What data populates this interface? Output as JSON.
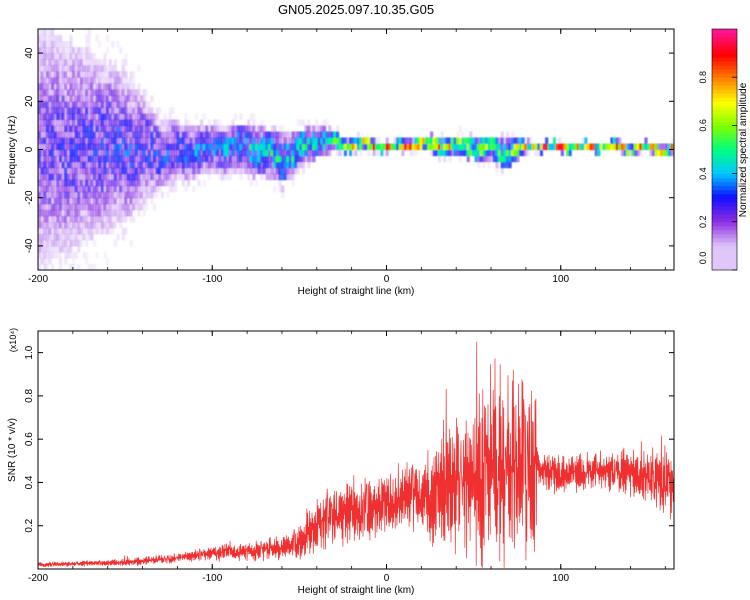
{
  "title": "GN05.2025.097.10.35.G05",
  "chart_data": [
    {
      "type": "heatmap",
      "xlabel": "Height of straight line (km)",
      "ylabel": "Frequency (Hz)",
      "xlim": [
        -200,
        165
      ],
      "ylim": [
        -50,
        50
      ],
      "x_ticks": [
        -200,
        -100,
        0,
        100
      ],
      "y_ticks": [
        -40,
        -20,
        0,
        20,
        40
      ],
      "colorbar": {
        "label": "Normalized spectral amplitude",
        "range": [
          0,
          1
        ],
        "ticks": [
          "0.0",
          "0.2",
          "0.4",
          "0.6",
          "0.8"
        ],
        "colors": [
          "#ffffff",
          "#d8b8f8",
          "#8a2be2",
          "#1010ff",
          "#00c8ff",
          "#00ff80",
          "#80ff00",
          "#ffff00",
          "#ff8000",
          "#ff0000",
          "#ff1493"
        ]
      },
      "ridge": [
        {
          "x": -200,
          "center": 0,
          "spread": 50,
          "amp": 0.25
        },
        {
          "x": -150,
          "center": 0,
          "spread": 30,
          "amp": 0.3
        },
        {
          "x": -130,
          "center": -3,
          "spread": 14,
          "amp": 0.3
        },
        {
          "x": -100,
          "center": -1,
          "spread": 9,
          "amp": 0.35
        },
        {
          "x": -80,
          "center": 0,
          "spread": 10,
          "amp": 0.4
        },
        {
          "x": -60,
          "center": -5,
          "spread": 10,
          "amp": 0.45
        },
        {
          "x": -40,
          "center": 3,
          "spread": 6,
          "amp": 0.45
        },
        {
          "x": -25,
          "center": 1,
          "spread": 3,
          "amp": 0.6
        },
        {
          "x": 0,
          "center": 0,
          "spread": 2,
          "amp": 0.85
        },
        {
          "x": 20,
          "center": 1,
          "spread": 3,
          "amp": 0.75
        },
        {
          "x": 50,
          "center": 0,
          "spread": 5,
          "amp": 0.6
        },
        {
          "x": 70,
          "center": -2,
          "spread": 6,
          "amp": 0.5
        },
        {
          "x": 80,
          "center": 0,
          "spread": 2,
          "amp": 0.8
        },
        {
          "x": 120,
          "center": 0,
          "spread": 1.5,
          "amp": 0.95
        },
        {
          "x": 165,
          "center": -1,
          "spread": 2,
          "amp": 0.75
        }
      ]
    },
    {
      "type": "line",
      "xlabel": "Height of straight line (km)",
      "ylabel": "SNR (10 * v/v)",
      "multiplier": "(x10⁴)",
      "xlim": [
        -200,
        165
      ],
      "ylim": [
        0,
        1.1
      ],
      "x_ticks": [
        -200,
        -100,
        0,
        100
      ],
      "y_ticks": [
        "0.2",
        "0.4",
        "0.6",
        "0.8",
        "1.0"
      ],
      "line_color": "#f03030",
      "envelope": {
        "x": [
          -200,
          -150,
          -120,
          -100,
          -80,
          -60,
          -50,
          -45,
          -30,
          -10,
          0,
          10,
          20,
          30,
          40,
          50,
          60,
          70,
          80,
          86,
          87,
          100,
          120,
          140,
          150,
          160,
          165
        ],
        "mean": [
          0.02,
          0.03,
          0.05,
          0.07,
          0.08,
          0.1,
          0.12,
          0.18,
          0.24,
          0.27,
          0.3,
          0.33,
          0.32,
          0.36,
          0.4,
          0.42,
          0.45,
          0.44,
          0.42,
          0.42,
          0.45,
          0.44,
          0.45,
          0.44,
          0.43,
          0.4,
          0.38
        ],
        "amplitude": [
          0.01,
          0.015,
          0.02,
          0.03,
          0.04,
          0.05,
          0.06,
          0.1,
          0.12,
          0.13,
          0.13,
          0.14,
          0.18,
          0.25,
          0.3,
          0.35,
          0.5,
          0.45,
          0.35,
          0.35,
          0.08,
          0.08,
          0.08,
          0.1,
          0.12,
          0.15,
          0.15
        ]
      }
    }
  ]
}
